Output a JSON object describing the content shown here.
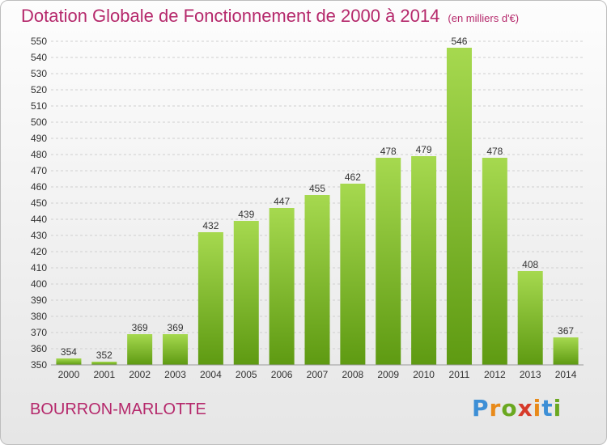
{
  "title": "Dotation Globale de Fonctionnement de 2000 à 2014",
  "unit": "(en milliers d'€)",
  "city": "BOURRON-MARLOTTE",
  "logo_text": "Proxiti",
  "colors": {
    "title": "#b5286b",
    "bar_light": "#a6d94f",
    "bar_dark": "#5e9a12",
    "logo": [
      "#3d8fd6",
      "#e88a1a",
      "#6aa820",
      "#d63a2a",
      "#e88a1a",
      "#3d8fd6",
      "#6aa820"
    ]
  },
  "chart_data": {
    "type": "bar",
    "categories": [
      "2000",
      "2001",
      "2002",
      "2003",
      "2004",
      "2005",
      "2006",
      "2007",
      "2008",
      "2009",
      "2010",
      "2011",
      "2012",
      "2013",
      "2014"
    ],
    "values": [
      354,
      352,
      369,
      369,
      432,
      439,
      447,
      455,
      462,
      478,
      479,
      546,
      478,
      408,
      367
    ],
    "title": "Dotation Globale de Fonctionnement de 2000 à 2014",
    "ylabel": "",
    "xlabel": "",
    "ylim": [
      350,
      550
    ],
    "ytick_step": 10,
    "grid": true,
    "legend": "none"
  }
}
